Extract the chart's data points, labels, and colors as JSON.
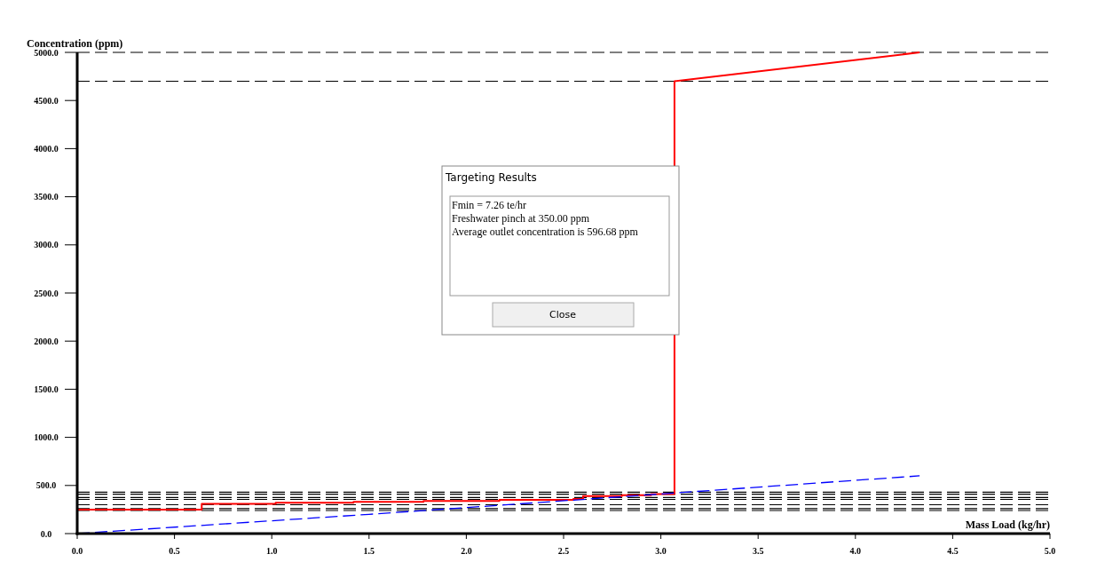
{
  "chart_data": {
    "type": "line",
    "xlabel": "Mass Load (kg/hr)",
    "ylabel": "Concentration (ppm)",
    "xlim": [
      0,
      5
    ],
    "ylim": [
      0,
      5000
    ],
    "xticks": [
      {
        "value": 0,
        "label": "0.0"
      },
      {
        "value": 0.5,
        "label": "0.5"
      },
      {
        "value": 1,
        "label": "1.0"
      },
      {
        "value": 1.5,
        "label": "1.5"
      },
      {
        "value": 2,
        "label": "2.0"
      },
      {
        "value": 2.5,
        "label": "2.5"
      },
      {
        "value": 3,
        "label": "3.0"
      },
      {
        "value": 3.5,
        "label": "3.5"
      },
      {
        "value": 4,
        "label": "4.0"
      },
      {
        "value": 4.5,
        "label": "4.5"
      },
      {
        "value": 5,
        "label": "5.0"
      }
    ],
    "yticks": [
      {
        "value": 0,
        "label": "0.0"
      },
      {
        "value": 500,
        "label": "500.0"
      },
      {
        "value": 1000,
        "label": "1000.0"
      },
      {
        "value": 1500,
        "label": "1500.0"
      },
      {
        "value": 2000,
        "label": "2000.0"
      },
      {
        "value": 2500,
        "label": "2500.0"
      },
      {
        "value": 3000,
        "label": "3000.0"
      },
      {
        "value": 3500,
        "label": "3500.0"
      },
      {
        "value": 4000,
        "label": "4000.0"
      },
      {
        "value": 4500,
        "label": "4500.0"
      },
      {
        "value": 5000,
        "label": "5000.0"
      }
    ],
    "marker": "none",
    "series": [
      {
        "color": "#ff0000",
        "line_style": "solid",
        "x": [
          0,
          0.64,
          0.64,
          1.02,
          1.02,
          1.42,
          1.42,
          1.78,
          1.78,
          2.17,
          2.17,
          2.55,
          2.55,
          2.6,
          2.6,
          2.8,
          2.8,
          2.95,
          2.95,
          3.07,
          3.07,
          4.33
        ],
        "values": [
          250,
          250,
          310,
          310,
          320,
          320,
          330,
          330,
          340,
          340,
          350,
          350,
          360,
          360,
          390,
          390,
          400,
          400,
          410,
          410,
          4700,
          5000
        ]
      },
      {
        "color": "#0000ff",
        "line_style": "dashed",
        "x": [
          0,
          1.5,
          2,
          4.33
        ],
        "values": [
          0,
          200,
          270,
          600
        ]
      }
    ],
    "ref_lines": [
      {
        "axis": "y",
        "value": 5000,
        "color": "#000000",
        "line_style": "dashed"
      },
      {
        "axis": "y",
        "value": 4700,
        "color": "#000000",
        "line_style": "dashed"
      },
      {
        "axis": "y",
        "value": 430,
        "color": "#000000",
        "line_style": "dashed"
      },
      {
        "axis": "y",
        "value": 410,
        "color": "#000000",
        "line_style": "dashed"
      },
      {
        "axis": "y",
        "value": 375,
        "color": "#000000",
        "line_style": "dashed"
      },
      {
        "axis": "y",
        "value": 355,
        "color": "#000000",
        "line_style": "dashed"
      },
      {
        "axis": "y",
        "value": 300,
        "color": "#000000",
        "line_style": "dashed"
      },
      {
        "axis": "y",
        "value": 260,
        "color": "#000000",
        "line_style": "dashed"
      },
      {
        "axis": "y",
        "value": 240,
        "color": "#000000",
        "line_style": "dashed"
      }
    ],
    "annotations": [
      "Targeting Results",
      "Fmin = 7.26 te/hr",
      "Freshwater pinch at 350.00 ppm",
      "Average outlet concentration is 596.68 ppm",
      "Close"
    ]
  }
}
